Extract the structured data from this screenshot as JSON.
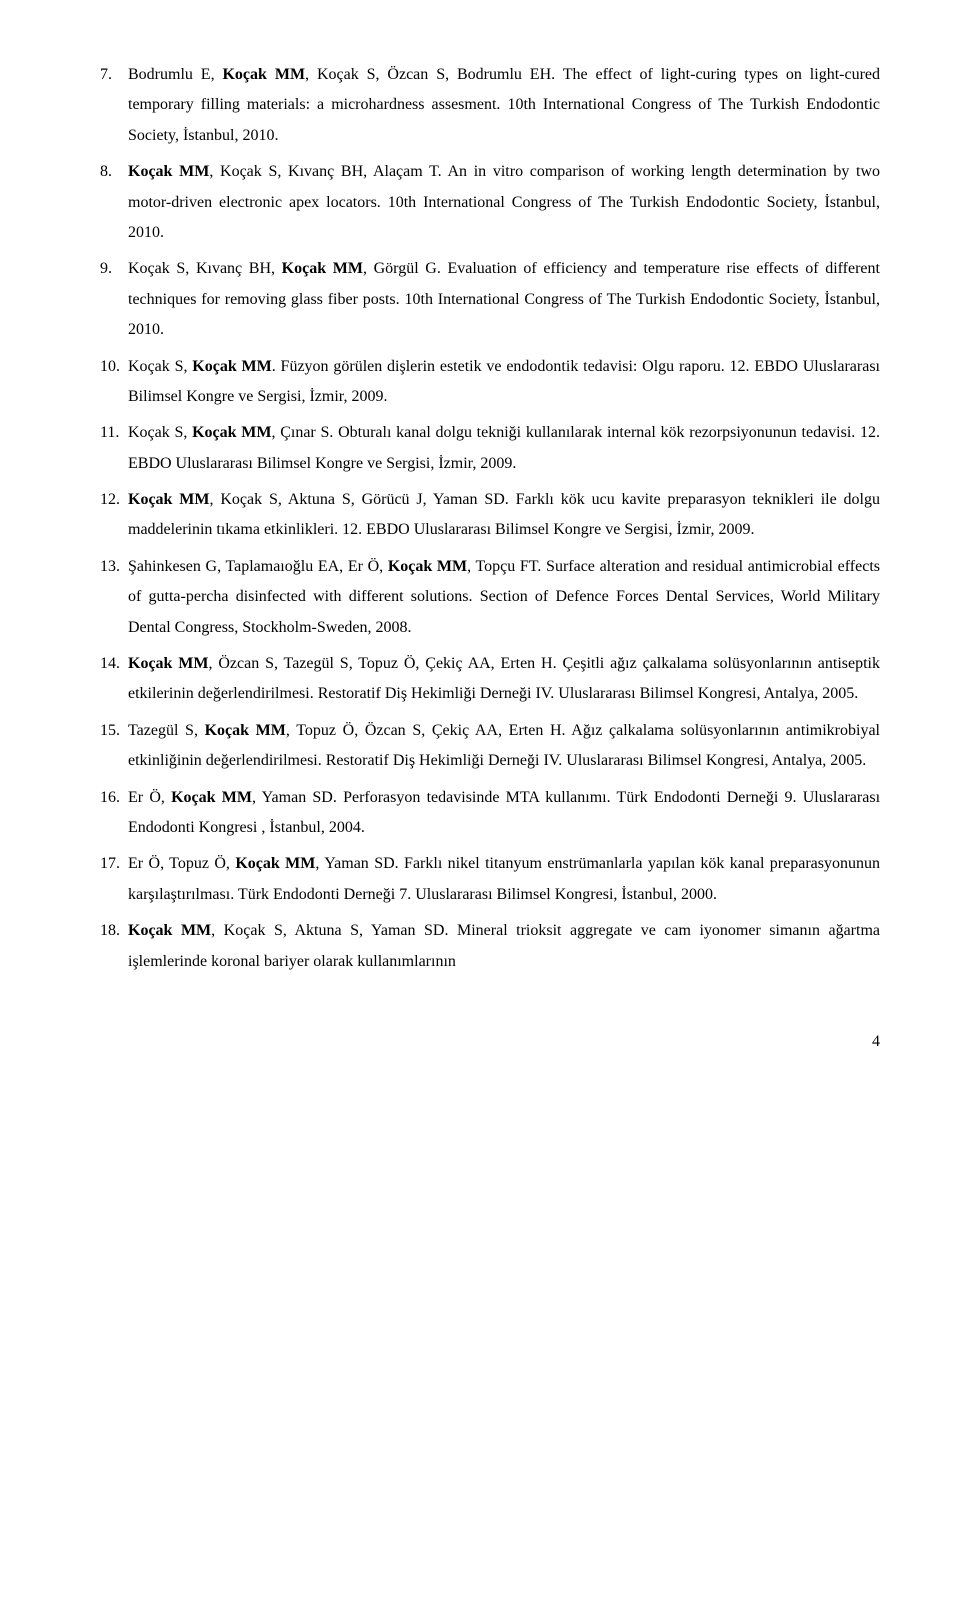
{
  "refs": [
    {
      "n": "7.",
      "parts": [
        {
          "t": "Bodrumlu E, "
        },
        {
          "t": "Koçak MM",
          "b": true
        },
        {
          "t": ", Koçak S, Özcan S, Bodrumlu EH. The effect of light-curing types on light-cured temporary filling materials: a microhardness assesment. 10th International Congress of The Turkish Endodontic Society, İstanbul, 2010."
        }
      ]
    },
    {
      "n": "8.",
      "parts": [
        {
          "t": "Koçak MM",
          "b": true
        },
        {
          "t": ", Koçak S, Kıvanç BH, Alaçam T. An in vitro comparison of working length determination by two motor-driven electronic apex locators. 10th International Congress of The Turkish Endodontic Society, İstanbul, 2010."
        }
      ]
    },
    {
      "n": "9.",
      "parts": [
        {
          "t": "Koçak S, Kıvanç BH, "
        },
        {
          "t": "Koçak MM",
          "b": true
        },
        {
          "t": ", Görgül G. Evaluation of efficiency and temperature rise effects of different techniques for removing glass fiber posts. 10th International Congress of The Turkish Endodontic Society, İstanbul, 2010."
        }
      ]
    },
    {
      "n": "10.",
      "parts": [
        {
          "t": "Koçak S, "
        },
        {
          "t": "Koçak MM",
          "b": true
        },
        {
          "t": ". Füzyon görülen dişlerin estetik ve endodontik tedavisi: Olgu raporu. 12. EBDO Uluslararası Bilimsel Kongre ve Sergisi, İzmir, 2009."
        }
      ]
    },
    {
      "n": "11.",
      "parts": [
        {
          "t": "Koçak S, "
        },
        {
          "t": "Koçak MM",
          "b": true
        },
        {
          "t": ", Çınar S. Obturalı kanal dolgu tekniği kullanılarak internal kök rezorpsiyonunun tedavisi. 12. EBDO Uluslararası Bilimsel Kongre ve Sergisi, İzmir, 2009."
        }
      ]
    },
    {
      "n": "12.",
      "parts": [
        {
          "t": "Koçak MM",
          "b": true
        },
        {
          "t": ", Koçak S, Aktuna S, Görücü J, Yaman SD. Farklı kök ucu kavite preparasyon teknikleri ile dolgu maddelerinin tıkama etkinlikleri. 12. EBDO Uluslararası Bilimsel Kongre ve Sergisi, İzmir, 2009."
        }
      ]
    },
    {
      "n": "13.",
      "parts": [
        {
          "t": "Şahinkesen G, Taplamaıoğlu EA, Er Ö, "
        },
        {
          "t": "Koçak MM",
          "b": true
        },
        {
          "t": ", Topçu FT. Surface alteration and residual antimicrobial effects of gutta-percha disinfected with different solutions. Section of Defence Forces Dental Services, World Military Dental Congress, Stockholm-Sweden, 2008."
        }
      ]
    },
    {
      "n": "14.",
      "parts": [
        {
          "t": "Koçak MM",
          "b": true
        },
        {
          "t": ", Özcan S, Tazegül S, Topuz Ö, Çekiç AA, Erten H. Çeşitli ağız çalkalama solüsyonlarının antiseptik etkilerinin değerlendirilmesi. Restoratif Diş Hekimliği Derneği IV. Uluslararası Bilimsel Kongresi, Antalya, 2005."
        }
      ]
    },
    {
      "n": "15.",
      "parts": [
        {
          "t": "Tazegül S, "
        },
        {
          "t": "Koçak MM",
          "b": true
        },
        {
          "t": ", Topuz Ö, Özcan S, Çekiç AA, Erten H. Ağız çalkalama solüsyonlarının antimikrobiyal etkinliğinin değerlendirilmesi. Restoratif Diş Hekimliği Derneği IV. Uluslararası Bilimsel Kongresi, Antalya, 2005."
        }
      ]
    },
    {
      "n": "16.",
      "parts": [
        {
          "t": "Er Ö, "
        },
        {
          "t": "Koçak MM",
          "b": true
        },
        {
          "t": ", Yaman SD. Perforasyon tedavisinde MTA kullanımı. Türk Endodonti Derneği 9. Uluslararası Endodonti Kongresi , İstanbul, 2004."
        }
      ]
    },
    {
      "n": "17.",
      "parts": [
        {
          "t": "Er Ö, Topuz Ö, "
        },
        {
          "t": "Koçak MM",
          "b": true
        },
        {
          "t": ", Yaman SD. Farklı nikel titanyum enstrümanlarla yapılan kök kanal preparasyonunun karşılaştırılması. Türk Endodonti Derneği 7. Uluslararası Bilimsel Kongresi, İstanbul, 2000."
        }
      ]
    },
    {
      "n": "18.",
      "parts": [
        {
          "t": "Koçak MM",
          "b": true
        },
        {
          "t": ", Koçak S, Aktuna S, Yaman SD. Mineral trioksit aggregate ve cam iyonomer simanın ağartma işlemlerinde koronal bariyer olarak kullanımlarının"
        }
      ]
    }
  ],
  "page_number": "4"
}
